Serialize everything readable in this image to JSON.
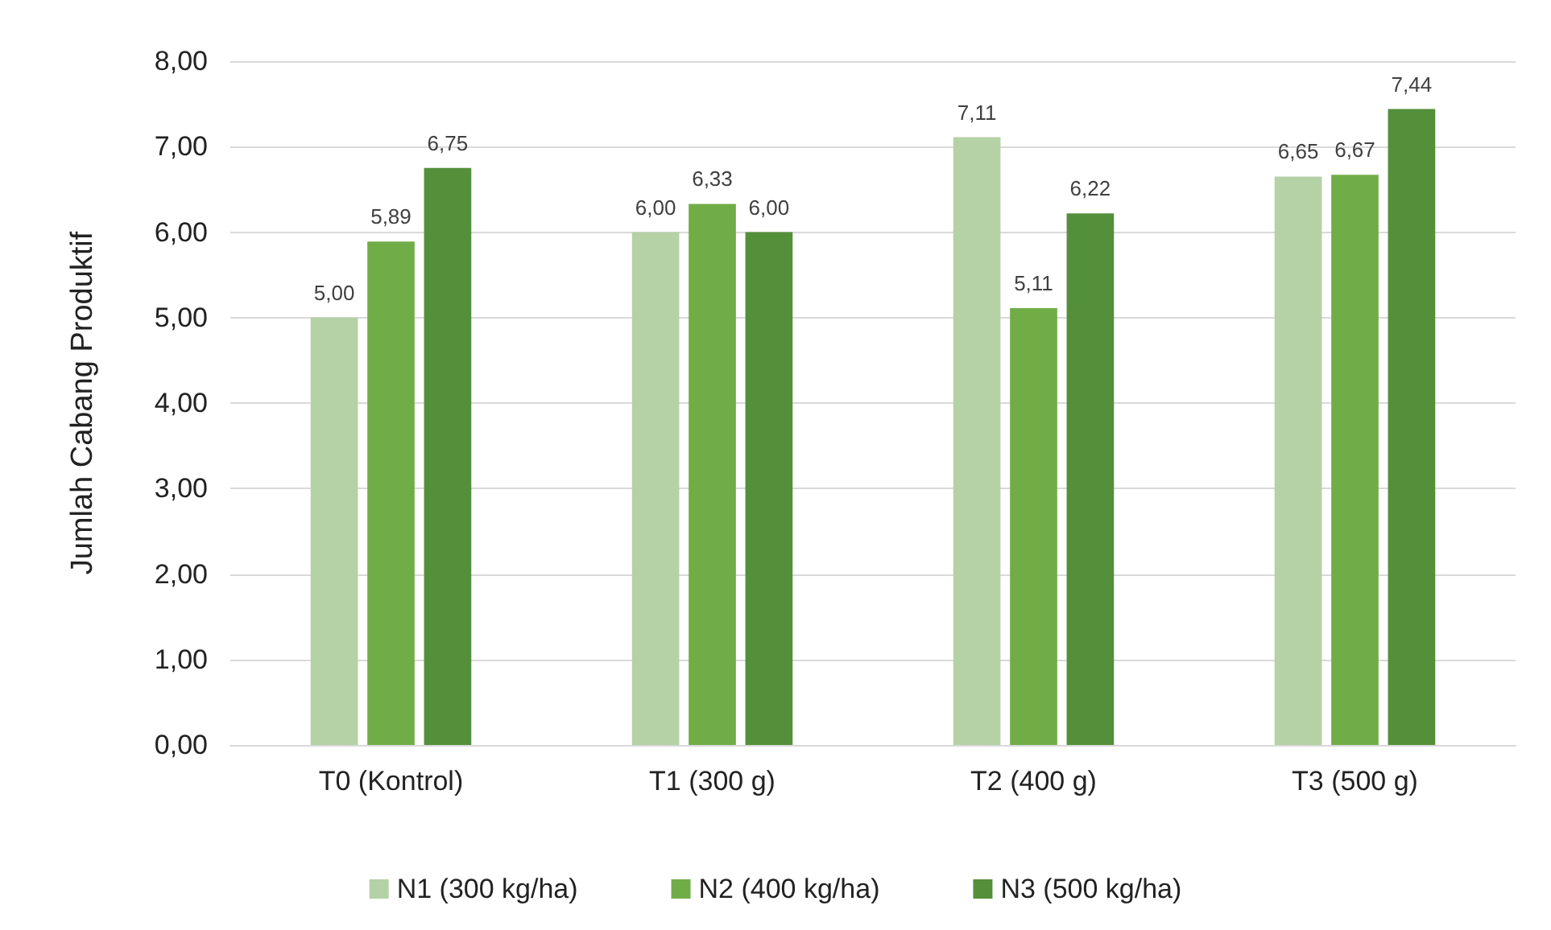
{
  "chart_data": {
    "type": "bar",
    "ylabel": "Jumlah Cabang Produktif",
    "categories": [
      "T0 (Kontrol)",
      "T1 (300 g)",
      "T2 (400 g)",
      "T3 (500 g)"
    ],
    "series": [
      {
        "name": "N1 (300 kg/ha)",
        "color": "#b5d1a6",
        "values": [
          5.0,
          6.0,
          7.11,
          6.65
        ],
        "value_labels": [
          "5,00",
          "6,00",
          "7,11",
          "6,65"
        ]
      },
      {
        "name": "N2 (400 kg/ha)",
        "color": "#70ad47",
        "values": [
          5.89,
          6.33,
          5.11,
          6.67
        ],
        "value_labels": [
          "5,89",
          "6,33",
          "5,11",
          "6,67"
        ]
      },
      {
        "name": "N3 (500 kg/ha)",
        "color": "#548f3a",
        "values": [
          6.75,
          6.0,
          6.22,
          7.44
        ],
        "value_labels": [
          "6,75",
          "6,00",
          "6,22",
          "7,44"
        ]
      }
    ],
    "ylim": [
      0,
      8
    ],
    "yticks": [
      {
        "value": 0,
        "label": "0,00"
      },
      {
        "value": 1,
        "label": "1,00"
      },
      {
        "value": 2,
        "label": "2,00"
      },
      {
        "value": 3,
        "label": "3,00"
      },
      {
        "value": 4,
        "label": "4,00"
      },
      {
        "value": 5,
        "label": "5,00"
      },
      {
        "value": 6,
        "label": "6,00"
      },
      {
        "value": 7,
        "label": "7,00"
      },
      {
        "value": 8,
        "label": "8,00"
      }
    ],
    "grid": "y",
    "legend": "bottom"
  }
}
